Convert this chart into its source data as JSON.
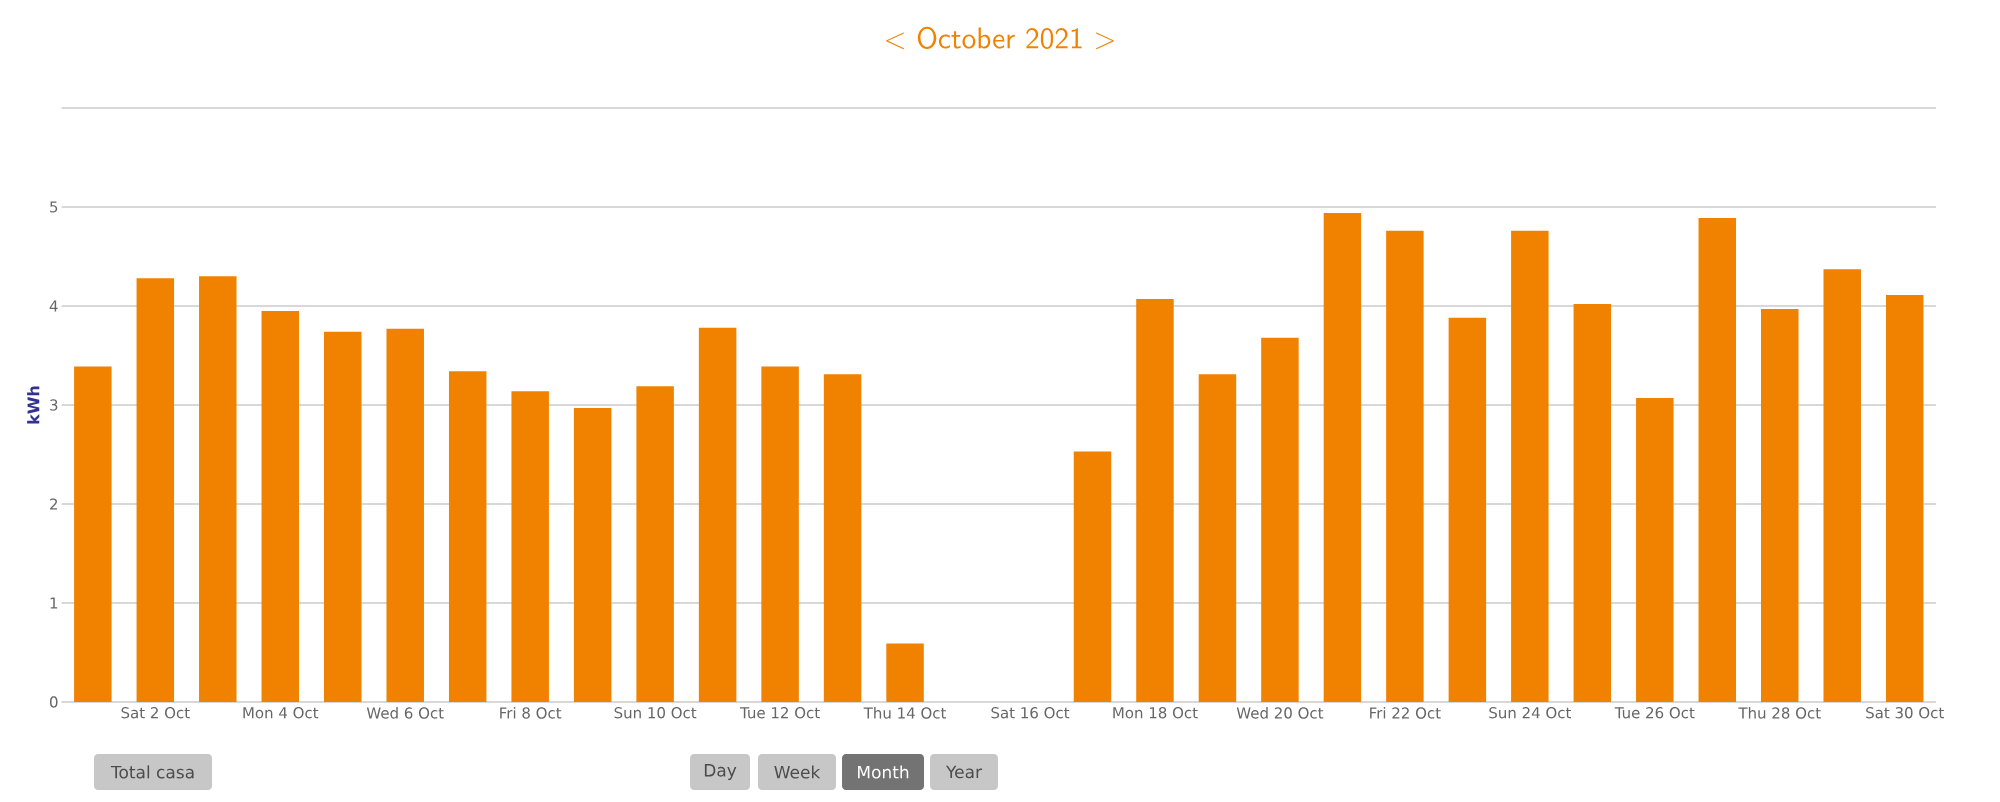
{
  "chart_data": {
    "type": "bar",
    "title": "<  October 2021  >",
    "ylabel": "kWh",
    "categories": [
      null,
      "Sat 2 Oct",
      null,
      "Mon 4 Oct",
      null,
      "Wed 6 Oct",
      null,
      "Fri 8 Oct",
      null,
      "Sun 10 Oct",
      null,
      "Tue 12 Oct",
      null,
      "Thu 14 Oct",
      null,
      "Sat 16 Oct",
      null,
      "Mon 18 Oct",
      null,
      "Wed 20 Oct",
      null,
      "Fri 22 Oct",
      null,
      "Sun 24 Oct",
      null,
      "Tue 26 Oct",
      null,
      "Thu 28 Oct",
      null,
      "Sat 30 Oct"
    ],
    "values": [
      3.39,
      4.28,
      4.3,
      3.95,
      3.74,
      3.77,
      3.34,
      3.14,
      2.97,
      3.19,
      3.78,
      3.39,
      3.31,
      0.59,
      null,
      null,
      2.53,
      4.07,
      3.31,
      3.68,
      4.94,
      4.76,
      3.88,
      4.76,
      4.02,
      3.07,
      4.89,
      3.97,
      4.37,
      4.11
    ],
    "color": "#f08200",
    "ylim": [
      0,
      6
    ],
    "yticks": [
      0,
      1,
      2,
      3,
      4,
      5,
      {
        "value": 6,
        "label": null
      }
    ],
    "grid": "y",
    "annotations": [
      "Total casa",
      "Day",
      "Week",
      "Month",
      "Year"
    ]
  }
}
